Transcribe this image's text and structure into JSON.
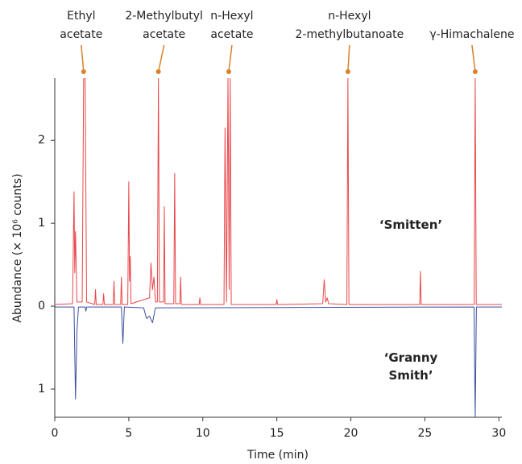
{
  "chart_data": {
    "type": "line",
    "x_label": "Time (min)",
    "y_label": "Abundance (× 10⁶ counts)",
    "xlim": [
      0,
      30.2
    ],
    "xticks": [
      0,
      5,
      10,
      15,
      20,
      25,
      30
    ],
    "ylim": [
      -1.34,
      2.75
    ],
    "yticks": [
      {
        "value": -1,
        "label": "1"
      },
      0,
      1,
      2
    ],
    "annotation_color": "#d9822b",
    "annotations": [
      {
        "text": [
          "Ethyl",
          "acetate"
        ],
        "x": 1.95
      },
      {
        "text": [
          "2-Methylbutyl",
          "acetate"
        ],
        "x": 7.0
      },
      {
        "text": [
          "n-Hexyl",
          "acetate"
        ],
        "x": 11.75
      },
      {
        "text": [
          "n-Hexyl",
          "2-methylbutanoate"
        ],
        "x": 19.8
      },
      {
        "text": [
          "γ-Himachalene"
        ],
        "x": 28.4
      }
    ],
    "series": [
      {
        "name": "‘Smitten’",
        "color": "#e8474a",
        "x": [
          0,
          1.2,
          1.3,
          1.35,
          1.4,
          1.5,
          1.85,
          1.95,
          2.05,
          2.15,
          2.7,
          2.75,
          2.8,
          3.25,
          3.3,
          3.35,
          3.95,
          4.0,
          4.05,
          4.45,
          4.5,
          4.55,
          4.93,
          5.0,
          5.05,
          5.1,
          5.15,
          6.4,
          6.5,
          6.6,
          6.7,
          6.8,
          6.93,
          7.0,
          7.07,
          7.35,
          7.4,
          7.45,
          8.04,
          8.1,
          8.16,
          8.45,
          8.5,
          8.55,
          9.75,
          9.8,
          9.85,
          11.43,
          11.5,
          11.6,
          11.7,
          11.78,
          11.85,
          11.92,
          14.95,
          15.0,
          15.05,
          18.1,
          18.2,
          18.3,
          18.4,
          18.5,
          19.73,
          19.8,
          19.87,
          24.65,
          24.7,
          24.75,
          28.33,
          28.4,
          28.47,
          30.2
        ],
        "values": [
          0.02,
          0.03,
          1.38,
          0.4,
          0.9,
          0.05,
          0.05,
          2.75,
          2.75,
          0.05,
          0.02,
          0.2,
          0.02,
          0.02,
          0.15,
          0.02,
          0.02,
          0.3,
          0.02,
          0.02,
          0.35,
          0.02,
          0.02,
          1.5,
          0.3,
          0.6,
          0.03,
          0.1,
          0.52,
          0.2,
          0.35,
          0.05,
          0.05,
          2.75,
          0.05,
          0.05,
          1.2,
          0.03,
          0.03,
          1.6,
          0.03,
          0.03,
          0.35,
          0.02,
          0.02,
          0.1,
          0.02,
          0.02,
          2.15,
          0.05,
          2.75,
          0.2,
          2.75,
          0.02,
          0.02,
          0.08,
          0.02,
          0.03,
          0.32,
          0.05,
          0.1,
          0.03,
          0.02,
          2.75,
          0.02,
          0.02,
          0.42,
          0.02,
          0.02,
          2.75,
          0.02,
          0.02
        ]
      },
      {
        "name": "‘Granny Smith’",
        "color": "#3b4fa0",
        "x": [
          0,
          1.3,
          1.4,
          1.5,
          1.6,
          2.05,
          2.1,
          2.15,
          4.5,
          4.6,
          4.7,
          6.0,
          6.2,
          6.4,
          6.6,
          6.8,
          28.32,
          28.4,
          28.48,
          30.2
        ],
        "values": [
          -0.01,
          -0.01,
          -1.12,
          -0.3,
          -0.01,
          -0.01,
          -0.06,
          -0.01,
          -0.01,
          -0.45,
          -0.01,
          -0.02,
          -0.15,
          -0.12,
          -0.2,
          -0.02,
          -0.01,
          -1.34,
          -0.01,
          -0.01
        ]
      }
    ]
  }
}
